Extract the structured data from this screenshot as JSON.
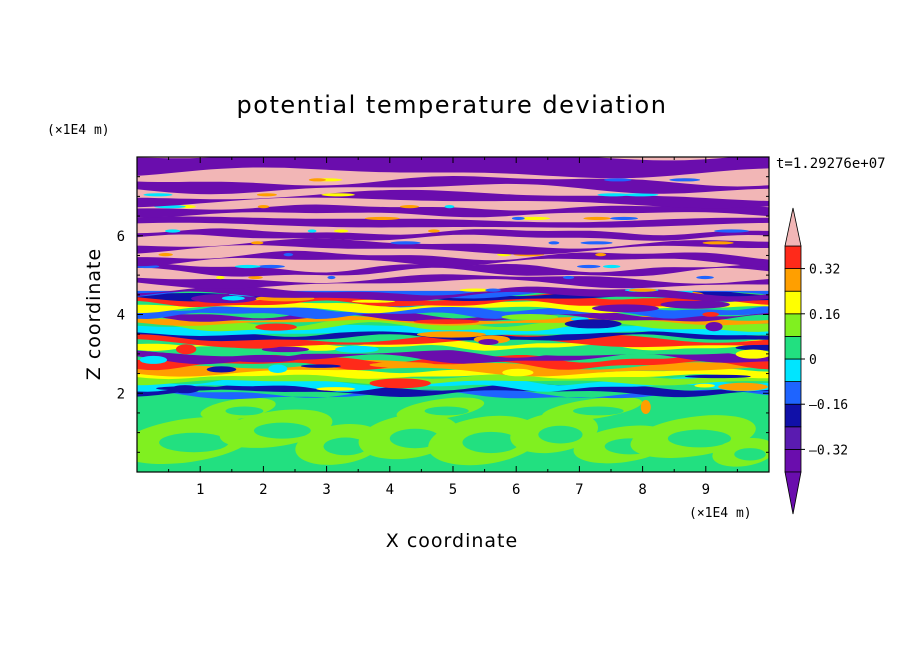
{
  "chart_data": {
    "type": "heatmap",
    "title": "potential temperature deviation",
    "xlabel": "X coordinate",
    "ylabel": "Z coordinate",
    "x_unit": "(×1E4 m)",
    "y_unit": "(×1E4 m)",
    "time_label": "t=1.29276e+07",
    "xlim": [
      0,
      10
    ],
    "ylim": [
      0,
      8
    ],
    "x_ticks": [
      "1",
      "2",
      "3",
      "4",
      "5",
      "6",
      "7",
      "8",
      "9"
    ],
    "y_ticks": [
      "2",
      "4",
      "6"
    ],
    "colorbar": {
      "levels": [
        -0.4,
        -0.32,
        -0.24,
        -0.16,
        -0.08,
        0,
        0.08,
        0.16,
        0.24,
        0.32,
        0.4
      ],
      "tick_labels": [
        "0.32",
        "0.16",
        "0",
        "–0.16",
        "–0.32"
      ],
      "tick_values": [
        0.32,
        0.16,
        0,
        -0.16,
        -0.32
      ],
      "colors": [
        "#6a0dad",
        "#5a1bb0",
        "#1010a8",
        "#1e64ff",
        "#00e5ff",
        "#22e080",
        "#80f020",
        "#ffff00",
        "#ff9f00",
        "#ff2a1a",
        "#f2b6b6"
      ],
      "extend": "both"
    },
    "bands": [
      {
        "y0": 0,
        "y1": 1.95,
        "color": "#22e080",
        "note": "lower region mostly near 0 with green swirls"
      },
      {
        "y0": 1.95,
        "y1": 4.6,
        "color": "mixed",
        "note": "turbulent mixed layer"
      },
      {
        "y0": 4.6,
        "y1": 8,
        "color": "alternating",
        "note": "alternating purple and pink layers"
      }
    ]
  }
}
